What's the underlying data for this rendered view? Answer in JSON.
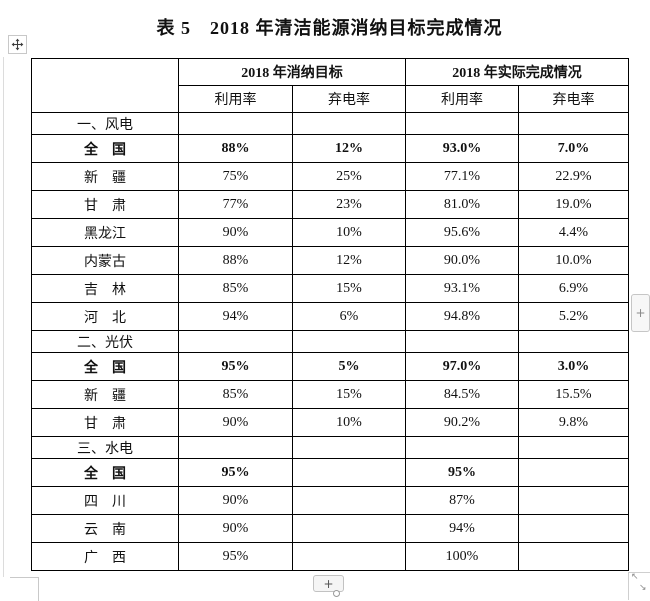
{
  "title": "表 5　2018 年清洁能源消纳目标完成情况",
  "table": {
    "col_group_headers": [
      "2018 年消纳目标",
      "2018 年实际完成情况"
    ],
    "sub_headers": [
      "利用率",
      "弃电率",
      "利用率",
      "弃电率"
    ],
    "sections": [
      {
        "label": "一、风电",
        "rows": [
          {
            "region": "全　国",
            "bold": true,
            "values": [
              "88%",
              "12%",
              "93.0%",
              "7.0%"
            ]
          },
          {
            "region": "新　疆",
            "bold": false,
            "values": [
              "75%",
              "25%",
              "77.1%",
              "22.9%"
            ]
          },
          {
            "region": "甘　肃",
            "bold": false,
            "values": [
              "77%",
              "23%",
              "81.0%",
              "19.0%"
            ]
          },
          {
            "region": "黑龙江",
            "bold": false,
            "values": [
              "90%",
              "10%",
              "95.6%",
              "4.4%"
            ]
          },
          {
            "region": "内蒙古",
            "bold": false,
            "values": [
              "88%",
              "12%",
              "90.0%",
              "10.0%"
            ]
          },
          {
            "region": "吉　林",
            "bold": false,
            "values": [
              "85%",
              "15%",
              "93.1%",
              "6.9%"
            ]
          },
          {
            "region": "河　北",
            "bold": false,
            "values": [
              "94%",
              "6%",
              "94.8%",
              "5.2%"
            ]
          }
        ]
      },
      {
        "label": "二、光伏",
        "rows": [
          {
            "region": "全　国",
            "bold": true,
            "values": [
              "95%",
              "5%",
              "97.0%",
              "3.0%"
            ]
          },
          {
            "region": "新　疆",
            "bold": false,
            "values": [
              "85%",
              "15%",
              "84.5%",
              "15.5%"
            ]
          },
          {
            "region": "甘　肃",
            "bold": false,
            "values": [
              "90%",
              "10%",
              "90.2%",
              "9.8%"
            ]
          }
        ]
      },
      {
        "label": "三、水电",
        "rows": [
          {
            "region": "全　国",
            "bold": true,
            "values": [
              "95%",
              "",
              "95%",
              ""
            ]
          },
          {
            "region": "四　川",
            "bold": false,
            "values": [
              "90%",
              "",
              "87%",
              ""
            ]
          },
          {
            "region": "云　南",
            "bold": false,
            "values": [
              "90%",
              "",
              "94%",
              ""
            ]
          },
          {
            "region": "广　西",
            "bold": false,
            "values": [
              "95%",
              "",
              "100%",
              ""
            ]
          }
        ]
      }
    ]
  },
  "ui": {
    "move_handle_icon": "move-cross-icon",
    "add_button_bottom_label": "+",
    "add_button_right_label": "+",
    "resize_arrow_nw": "↖",
    "resize_arrow_se": "↘"
  },
  "colors": {
    "table_border": "#000000",
    "text": "#111111",
    "control_border": "#c6c6c6",
    "control_bg": "#f5f5f5"
  }
}
